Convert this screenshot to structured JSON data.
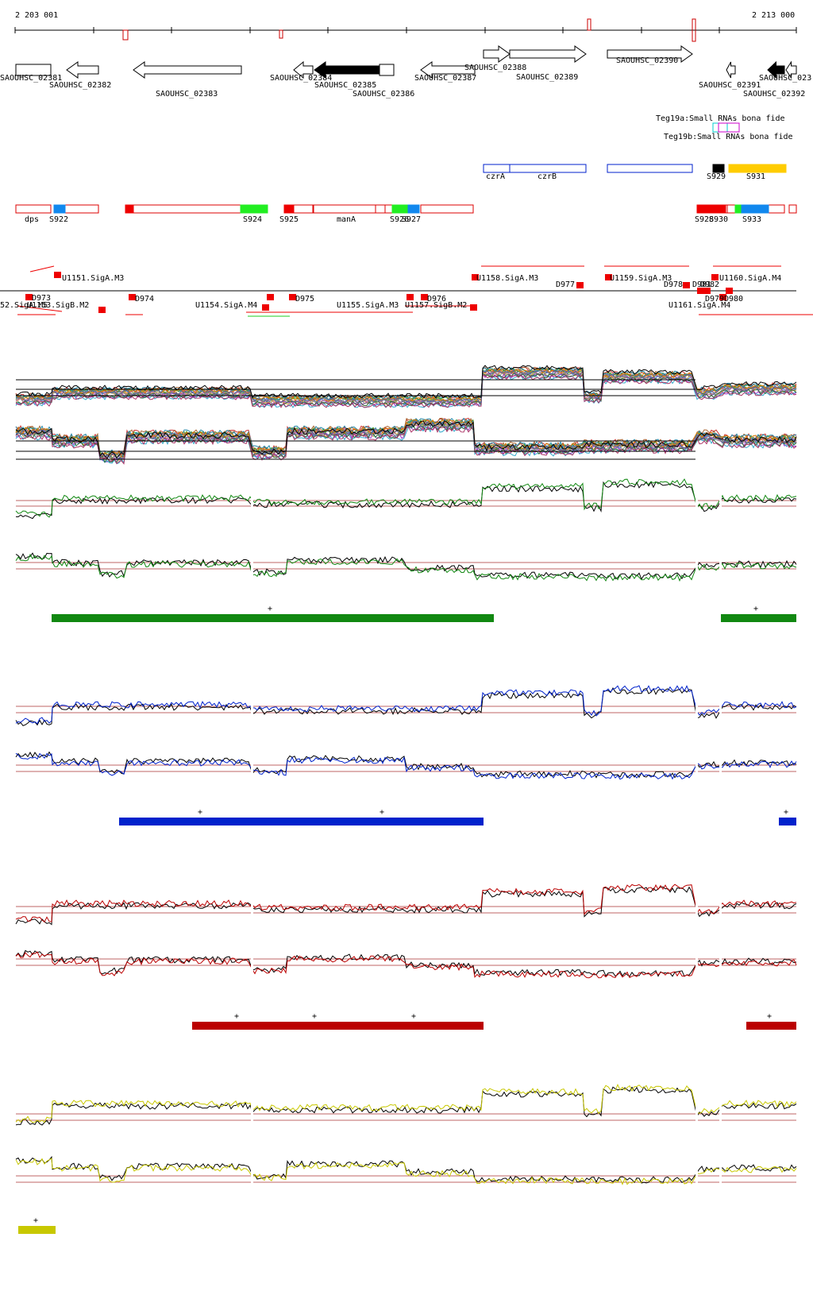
{
  "coords": {
    "start": "2 203 001",
    "end": "2 213 000"
  },
  "genes": [
    {
      "label": "SAOUHSC_02381",
      "dir": "none",
      "filled": false
    },
    {
      "label": "SAOUHSC_02382",
      "dir": "left",
      "filled": false
    },
    {
      "label": "SAOUHSC_02383",
      "dir": "left",
      "filled": false
    },
    {
      "label": "SAOUHSC_02384",
      "dir": "left",
      "filled": false
    },
    {
      "label": "SAOUHSC_02385",
      "dir": "left",
      "filled": true
    },
    {
      "label": "SAOUHSC_02386",
      "dir": "none",
      "filled": false
    },
    {
      "label": "SAOUHSC_02387",
      "dir": "left",
      "filled": false
    },
    {
      "label": "SAOUHSC_02388",
      "dir": "right",
      "filled": false
    },
    {
      "label": "SAOUHSC_02389",
      "dir": "right",
      "filled": false
    },
    {
      "label": "SAOUHSC_02390",
      "dir": "right",
      "filled": false
    },
    {
      "label": "SAOUHSC_02391",
      "dir": "left",
      "filled": false
    },
    {
      "label": "SAOUHSC_02392",
      "dir": "left",
      "filled": true
    },
    {
      "label": "SAOUHSC_023",
      "dir": "left",
      "filled": false
    }
  ],
  "srna": [
    {
      "label": "Teg19a:Small RNAs bona fide"
    },
    {
      "label": "Teg19b:Small RNAs bona fide"
    }
  ],
  "operons": [
    {
      "label": "czrA",
      "color": "#0022cc"
    },
    {
      "label": "czrB",
      "color": "#0022cc"
    },
    {
      "label": "",
      "color": "#0022cc"
    },
    {
      "label": "S929",
      "color": "#000000"
    },
    {
      "label": "S931",
      "color": "#ffcc00"
    }
  ],
  "segments": [
    {
      "label": "dps"
    },
    {
      "label": "S922"
    },
    {
      "label": "S924"
    },
    {
      "label": "S925"
    },
    {
      "label": "manA"
    },
    {
      "label": "S926"
    },
    {
      "label": "S927"
    },
    {
      "label": "S928"
    },
    {
      "label": "S930"
    },
    {
      "label": "S933"
    }
  ],
  "tss": [
    {
      "label": "U1151.SigA.M3"
    },
    {
      "label": "D973"
    },
    {
      "label": "52.SigA.M5"
    },
    {
      "label": "U1153.SigB.M2"
    },
    {
      "label": "D974"
    },
    {
      "label": "U1154.SigA.M4"
    },
    {
      "label": "D975"
    },
    {
      "label": "U1155.SigA.M3"
    },
    {
      "label": "U1157.SigB.M2"
    },
    {
      "label": "D976"
    },
    {
      "label": "U1158.SigA.M3"
    },
    {
      "label": "D977"
    },
    {
      "label": "U1159.SigA.M3"
    },
    {
      "label": "D978"
    },
    {
      "label": "D981"
    },
    {
      "label": "D982"
    },
    {
      "label": "U1160.SigA.M4"
    },
    {
      "label": "U1161.SigA.M4"
    },
    {
      "label": "D979"
    },
    {
      "label": "D980"
    }
  ],
  "panels": [
    {
      "name": "green",
      "color": "#118811",
      "bars": [
        {
          "marks": [
            "+"
          ]
        },
        {
          "marks": [
            "+"
          ]
        }
      ]
    },
    {
      "name": "blue",
      "color": "#0022cc",
      "bars": [
        {
          "marks": [
            "+",
            "+"
          ]
        },
        {
          "marks": [
            "+"
          ]
        }
      ]
    },
    {
      "name": "red",
      "color": "#bb0000",
      "bars": [
        {
          "marks": [
            "+",
            "+",
            "+"
          ]
        },
        {
          "marks": [
            "+"
          ]
        }
      ]
    },
    {
      "name": "yellow",
      "color": "#c8c800",
      "bars": [
        {
          "marks": [
            "+"
          ]
        }
      ]
    }
  ]
}
